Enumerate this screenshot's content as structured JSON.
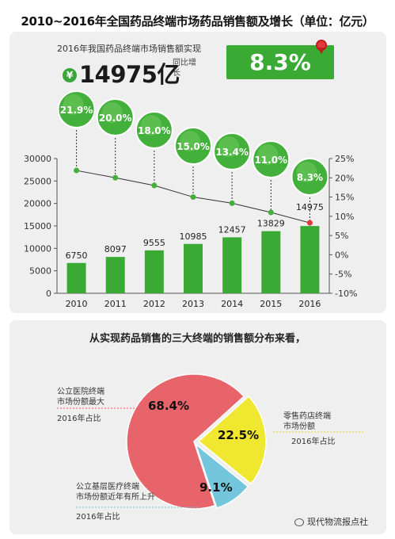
{
  "header": {
    "title": "2010~2016年全国药品终端市场药品销售额及增长（单位：亿元）"
  },
  "summary": {
    "subtitle": "2016年我国药品终端市场销售额实现",
    "currency_symbol": "¥",
    "value": "14975亿",
    "yoy_label": "同比增长",
    "growth": "8.3%"
  },
  "chart_data": [
    {
      "type": "bar",
      "categories": [
        "2010",
        "2011",
        "2012",
        "2013",
        "2014",
        "2015",
        "2016"
      ],
      "series": [
        {
          "values": [
            6750,
            8097,
            9555,
            10985,
            12457,
            13829,
            14975
          ],
          "color": "#3aaa35"
        },
        {
          "axis": "right",
          "type": "line",
          "values": [
            21.9,
            20.0,
            18.0,
            15.0,
            13.4,
            11.0,
            8.3
          ],
          "color": "#333333"
        }
      ],
      "bar_labels": [
        "6750",
        "8097",
        "9555",
        "10985",
        "12457",
        "13829",
        "14975"
      ],
      "bubble_labels": [
        "21.9%",
        "20.0%",
        "18.0%",
        "15.0%",
        "13.4%",
        "11.0%",
        "8.3%"
      ],
      "ylim": [
        0,
        30000
      ],
      "yticks": [
        "0",
        "5000",
        "10000",
        "15000",
        "20000",
        "25000",
        "30000"
      ],
      "y2lim": [
        -10,
        25
      ],
      "y2ticks": [
        "-10%",
        "-5%",
        "0%",
        "5%",
        "10%",
        "15%",
        "20%",
        "25%"
      ]
    },
    {
      "type": "pie",
      "title": "从实现药品销售的三大终端的销售额分布来看，",
      "slices": [
        {
          "label": "公立医院终端市场份额最大",
          "value": 68.4,
          "value_label": "68.4%",
          "color": "#e8646b",
          "note": "2016年占比"
        },
        {
          "label": "零售药店终端市场份额",
          "value": 22.5,
          "value_label": "22.5%",
          "color": "#f0e730",
          "note": "2016年占比"
        },
        {
          "label": "公立基层医疗终端市场份额近年有所上升",
          "value": 9.1,
          "value_label": "9.1%",
          "color": "#74c6dc",
          "note": "2016年占比"
        }
      ]
    }
  ],
  "pie_annotations": {
    "hospital_line1": "公立医院终端",
    "hospital_line2": "市场份额最大",
    "hospital_note": "2016年占比",
    "retail_line1": "零售药店终端",
    "retail_line2": "市场份额",
    "retail_note": "2016年占比",
    "primary_line1": "公立基层医疗终端",
    "primary_line2": "市场份额近年有所上升",
    "primary_note": "2016年占比"
  },
  "footer": {
    "source_logo": "现代物流报点社"
  }
}
